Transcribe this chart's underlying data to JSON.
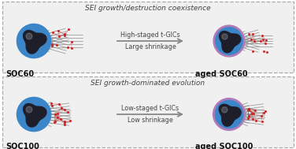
{
  "bg_color": "#f0f0f0",
  "panel_bg": "#f0f0f0",
  "border_color": "#aaaaaa",
  "title_top": "SEI growth-dominated evolution",
  "title_bottom": "SEI growth/destruction coexistence",
  "label_soc100": "SOC100",
  "label_aged_soc100": "aged SOC100",
  "label_soc60": "SOC60",
  "label_aged_soc60": "aged SOC60",
  "arrow_top_line1": "Low-staged t-GICs",
  "arrow_top_line2": "Low shrinkage",
  "arrow_bottom_line1": "High-staged t-GICs",
  "arrow_bottom_line2": "Large shrinkage",
  "blue_color": "#3a86c8",
  "dark_core_color": "#1e1e2a",
  "purple_sei_color": "#b07ab8",
  "blue_sei_outline": "#3a86c8",
  "graphene_color": "#888888",
  "graphene_dark": "#555555",
  "dot_color_red": "#cc2222",
  "dot_line_color": "#cc2222",
  "arrow_color": "#888888",
  "text_color_dark": "#444444",
  "text_color_label": "#111111",
  "dashed_border": "#aaaaaa",
  "white": "#ffffff"
}
